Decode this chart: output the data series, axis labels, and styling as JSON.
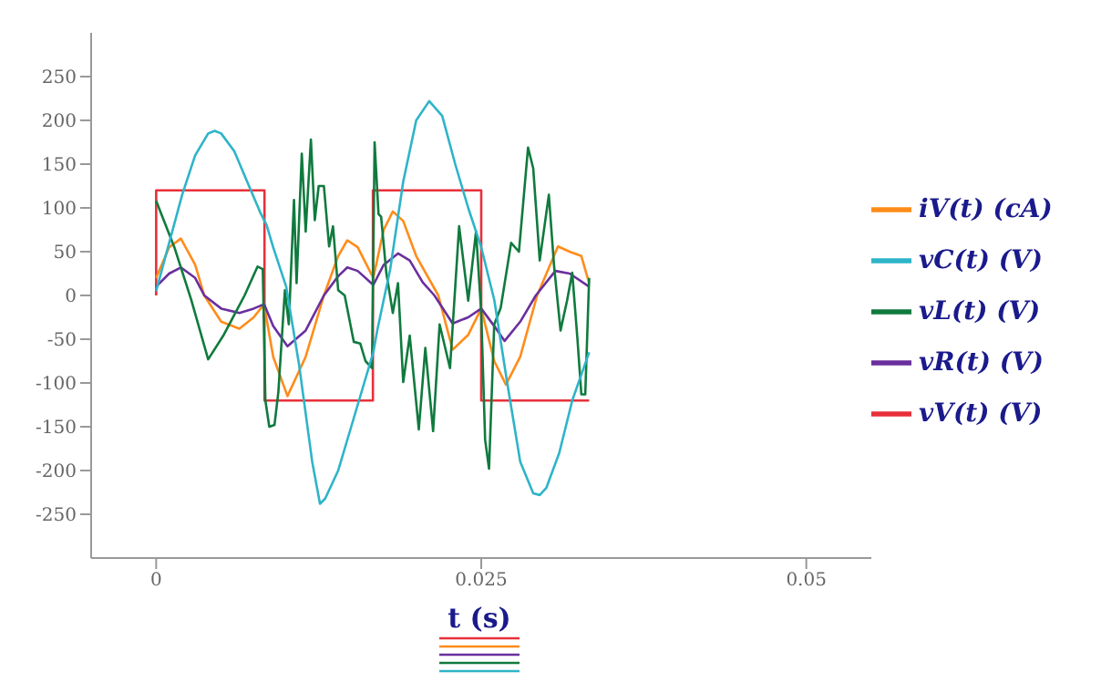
{
  "chart_data": {
    "type": "line",
    "xlabel": "t (s)",
    "xlim": [
      -0.005,
      0.055
    ],
    "xticks": [
      0,
      0.025,
      0.05
    ],
    "ylim": [
      -300,
      300
    ],
    "yticks": [
      -250,
      -200,
      -150,
      -100,
      -50,
      0,
      50,
      100,
      150,
      200,
      250
    ],
    "grid": false,
    "legend": "right",
    "marker": "none",
    "line_style": "solid",
    "series": [
      {
        "name": "vV(t) (V)",
        "color": "#e8303a",
        "x": [
          0,
          0,
          0.00833,
          0.00833,
          0.01667,
          0.01667,
          0.025,
          0.025,
          0.0333
        ],
        "values": [
          0,
          120,
          120,
          -120,
          -120,
          120,
          120,
          -120,
          -120
        ]
      },
      {
        "name": "iV(t) (cA)",
        "color": "#ff8c1a",
        "x": [
          0,
          0.001,
          0.0019,
          0.003,
          0.0037,
          0.005,
          0.0064,
          0.0075,
          0.0083,
          0.009,
          0.0101,
          0.0115,
          0.0129,
          0.014,
          0.0147,
          0.0155,
          0.0167,
          0.0175,
          0.0182,
          0.019,
          0.02,
          0.0217,
          0.0228,
          0.024,
          0.025,
          0.026,
          0.0269,
          0.028,
          0.0293,
          0.0309,
          0.0318,
          0.0327,
          0.0333
        ],
        "values": [
          20,
          55,
          65,
          35,
          0,
          -30,
          -38,
          -25,
          -10,
          -70,
          -115,
          -70,
          0,
          45,
          63,
          55,
          20,
          75,
          96,
          85,
          45,
          0,
          -62,
          -45,
          -15,
          -75,
          -102,
          -70,
          0,
          56,
          50,
          45,
          14
        ]
      },
      {
        "name": "vR(t) (V)",
        "color": "#6a2f9e",
        "x": [
          0,
          0.001,
          0.0019,
          0.003,
          0.0037,
          0.005,
          0.0064,
          0.0075,
          0.0083,
          0.009,
          0.0101,
          0.0115,
          0.0129,
          0.014,
          0.0147,
          0.0155,
          0.0167,
          0.0175,
          0.0186,
          0.0195,
          0.0205,
          0.0214,
          0.0228,
          0.024,
          0.025,
          0.026,
          0.0268,
          0.028,
          0.0292,
          0.0307,
          0.0318,
          0.0333
        ],
        "values": [
          10,
          25,
          32,
          20,
          0,
          -15,
          -20,
          -15,
          -10,
          -35,
          -58,
          -40,
          0,
          22,
          32,
          28,
          12,
          35,
          48,
          40,
          15,
          0,
          -32,
          -25,
          -15,
          -35,
          -52,
          -30,
          0,
          28,
          25,
          10
        ]
      },
      {
        "name": "vL(t) (V)",
        "color": "#107a3e",
        "x": [
          0,
          0.0014,
          0.0027,
          0.004,
          0.0052,
          0.0068,
          0.0078,
          0.0082,
          0.0084,
          0.0087,
          0.0091,
          0.0094,
          0.0099,
          0.0102,
          0.0106,
          0.0108,
          0.0112,
          0.0115,
          0.0119,
          0.0122,
          0.0125,
          0.0129,
          0.0133,
          0.0136,
          0.014,
          0.0145,
          0.0152,
          0.0157,
          0.0161,
          0.0166,
          0.0168,
          0.0171,
          0.0173,
          0.0177,
          0.0182,
          0.0186,
          0.019,
          0.0195,
          0.0202,
          0.0207,
          0.0213,
          0.0218,
          0.0226,
          0.0233,
          0.024,
          0.0246,
          0.025,
          0.0253,
          0.0256,
          0.026,
          0.0265,
          0.0273,
          0.0279,
          0.0286,
          0.029,
          0.0295,
          0.0302,
          0.0306,
          0.0311,
          0.0316,
          0.032,
          0.0324,
          0.0327,
          0.033,
          0.0333
        ],
        "values": [
          108,
          55,
          -5,
          -73,
          -45,
          0,
          33,
          30,
          -120,
          -150,
          -148,
          -110,
          6,
          -33,
          109,
          14,
          162,
          73,
          178,
          86,
          125,
          125,
          56,
          79,
          6,
          0,
          -53,
          -55,
          -75,
          -83,
          175,
          93,
          90,
          26,
          -20,
          14,
          -99,
          -46,
          -153,
          -60,
          -155,
          -33,
          -83,
          79,
          -6,
          73,
          -20,
          -165,
          -198,
          -33,
          -14,
          60,
          50,
          169,
          145,
          40,
          115,
          34,
          -40,
          -6,
          26,
          -50,
          -113,
          -113,
          20
        ]
      },
      {
        "name": "vC(t) (V)",
        "color": "#2eb4c8",
        "x": [
          0,
          0.001,
          0.002,
          0.003,
          0.004,
          0.0045,
          0.005,
          0.006,
          0.007,
          0.008,
          0.0085,
          0.009,
          0.01,
          0.011,
          0.012,
          0.0126,
          0.013,
          0.014,
          0.015,
          0.016,
          0.0167,
          0.017,
          0.018,
          0.019,
          0.02,
          0.021,
          0.022,
          0.023,
          0.024,
          0.025,
          0.026,
          0.027,
          0.028,
          0.029,
          0.0295,
          0.03,
          0.031,
          0.032,
          0.0333
        ],
        "values": [
          5,
          60,
          115,
          160,
          185,
          188,
          185,
          165,
          130,
          95,
          80,
          55,
          10,
          -80,
          -190,
          -238,
          -232,
          -200,
          -150,
          -100,
          -65,
          -40,
          30,
          130,
          200,
          222,
          205,
          150,
          100,
          55,
          -5,
          -100,
          -190,
          -226,
          -228,
          -220,
          -180,
          -120,
          -65
        ]
      }
    ]
  }
}
